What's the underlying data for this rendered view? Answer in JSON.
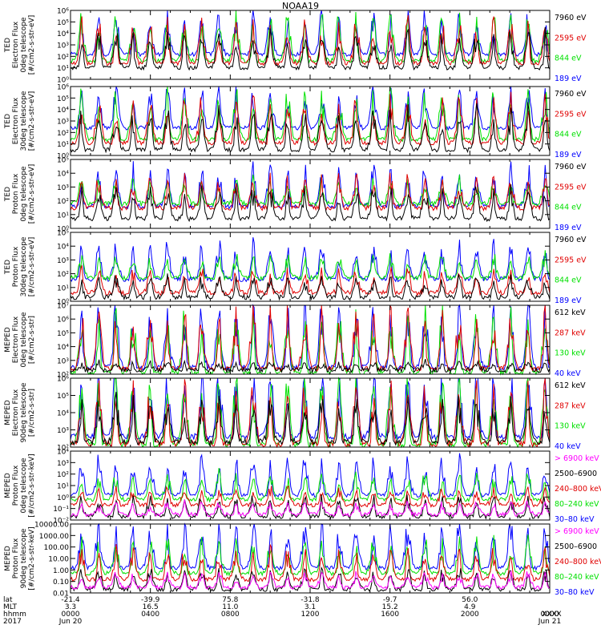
{
  "chart_data": {
    "type": "line",
    "title": "NOAA19",
    "grid": false,
    "legend_placement": "right",
    "x_axis": {
      "time_range_hours": [
        0,
        24
      ],
      "ticks": [
        {
          "lat": "-21.4",
          "mlt": "3.3",
          "hhmm": "0000",
          "date": "Jun 20"
        },
        {
          "lat": "-39.9",
          "mlt": "16.5",
          "hhmm": "0400",
          "date": ""
        },
        {
          "lat": "75.8",
          "mlt": "11.0",
          "hhmm": "0800",
          "date": ""
        },
        {
          "lat": "-31.8",
          "mlt": "3.1",
          "hhmm": "1200",
          "date": ""
        },
        {
          "lat": "-9.7",
          "mlt": "15.2",
          "hhmm": "1600",
          "date": ""
        },
        {
          "lat": "56.0",
          "mlt": "4.9",
          "hhmm": "2000",
          "date": ""
        },
        {
          "lat": "",
          "mlt": "",
          "hhmm": "0000",
          "date": "Jun 21"
        }
      ],
      "row_labels": [
        "lat",
        "MLT",
        "hhmm",
        "2017"
      ],
      "right_edge_label": "XXXX"
    },
    "panels": [
      {
        "ylabel": [
          "TED",
          "Electron Flux",
          "0deg telescope",
          "[#/cm2-s-str-eV]"
        ],
        "yscale": "log",
        "ylim": [
          1,
          1000000
        ],
        "tick_labels": [
          "10⁰",
          "10¹",
          "10²",
          "10³",
          "10⁴",
          "10⁵",
          "10⁶"
        ],
        "tick_format": "pow",
        "series": [
          {
            "name": "7960 eV",
            "color": "#000000",
            "base": 10,
            "spike": 3000
          },
          {
            "name": "2595 eV",
            "color": "#e00000",
            "base": 25,
            "spike": 20000
          },
          {
            "name": "844 eV",
            "color": "#00e000",
            "base": 40,
            "spike": 60000
          },
          {
            "name": "189 eV",
            "color": "#0000ff",
            "base": 150,
            "spike": 100000
          }
        ]
      },
      {
        "ylabel": [
          "TED",
          "Electron Flux",
          "30deg telescope",
          "[#/cm2-s-str-eV]"
        ],
        "yscale": "log",
        "ylim": [
          1,
          1000000
        ],
        "tick_labels": [
          "10⁰",
          "10¹",
          "10²",
          "10³",
          "10⁴",
          "10⁵",
          "10⁶"
        ],
        "tick_format": "pow",
        "series": [
          {
            "name": "7960 eV",
            "color": "#000000",
            "base": 3,
            "spike": 2000
          },
          {
            "name": "2595 eV",
            "color": "#e00000",
            "base": 12,
            "spike": 15000
          },
          {
            "name": "844 eV",
            "color": "#00e000",
            "base": 25,
            "spike": 50000
          },
          {
            "name": "189 eV",
            "color": "#0000ff",
            "base": 250,
            "spike": 120000
          }
        ]
      },
      {
        "ylabel": [
          "TED",
          "Proton Flux",
          "0deg telescope",
          "[#/cm2-s-str-eV]"
        ],
        "yscale": "log",
        "ylim": [
          1,
          100000
        ],
        "tick_labels": [
          "10⁰",
          "10¹",
          "10²",
          "10³",
          "10⁴",
          "10⁵"
        ],
        "tick_format": "pow",
        "series": [
          {
            "name": "7960 eV",
            "color": "#000000",
            "base": 5,
            "spike": 300
          },
          {
            "name": "2595 eV",
            "color": "#e00000",
            "base": 30,
            "spike": 2000
          },
          {
            "name": "844 eV",
            "color": "#00e000",
            "base": 60,
            "spike": 1500
          },
          {
            "name": "189 eV",
            "color": "#0000ff",
            "base": 40,
            "spike": 8000
          }
        ]
      },
      {
        "ylabel": [
          "TED",
          "Proton Flux",
          "30deg telescope",
          "[#/cm2-s-str-eV]"
        ],
        "yscale": "log",
        "ylim": [
          1,
          100000
        ],
        "tick_labels": [
          "10⁰",
          "10¹",
          "10²",
          "10³",
          "10⁴",
          "10⁵"
        ],
        "tick_format": "pow",
        "series": [
          {
            "name": "7960 eV",
            "color": "#000000",
            "base": 2,
            "spike": 30
          },
          {
            "name": "2595 eV",
            "color": "#e00000",
            "base": 4,
            "spike": 100
          },
          {
            "name": "844 eV",
            "color": "#00e000",
            "base": 50,
            "spike": 1000
          },
          {
            "name": "189 eV",
            "color": "#0000ff",
            "base": 40,
            "spike": 5000
          }
        ]
      },
      {
        "ylabel": [
          "MEPED",
          "Electron Flux",
          "0deg telescope",
          "[#/cm2-s-str]"
        ],
        "yscale": "log",
        "ylim": [
          100,
          10000000
        ],
        "tick_labels": [
          "10²",
          "10³",
          "10⁴",
          "10⁵",
          "10⁶",
          "10⁷"
        ],
        "tick_format": "pow",
        "series": [
          {
            "name": "612 keV",
            "color": "#000000",
            "base": 200,
            "spike": 600
          },
          {
            "name": "287 keV",
            "color": "#e00000",
            "base": 250,
            "spike": 500000
          },
          {
            "name": "130 keV",
            "color": "#00e000",
            "base": 120,
            "spike": 300000
          },
          {
            "name": "40 keV",
            "color": "#0000ff",
            "base": 300,
            "spike": 1000000
          }
        ]
      },
      {
        "ylabel": [
          "MEPED",
          "Electron Flux",
          "90deg telescope",
          "[#/cm2-s-str]"
        ],
        "yscale": "log",
        "ylim": [
          100,
          1000000
        ],
        "tick_labels": [
          "10²",
          "10³",
          "10⁴",
          "10⁵",
          "10⁶"
        ],
        "tick_format": "pow",
        "series": [
          {
            "name": "612 keV",
            "color": "#000000",
            "base": 200,
            "spike": 20000
          },
          {
            "name": "287 keV",
            "color": "#e00000",
            "base": 150,
            "spike": 80000
          },
          {
            "name": "130 keV",
            "color": "#00e000",
            "base": 130,
            "spike": 150000
          },
          {
            "name": "40 keV",
            "color": "#0000ff",
            "base": 400,
            "spike": 600000
          }
        ]
      },
      {
        "ylabel": [
          "MEPED",
          "Proton Flux",
          "0deg telescope",
          "[#/cm2-s-str-keV]"
        ],
        "yscale": "log",
        "ylim": [
          0.01,
          10000
        ],
        "tick_labels": [
          "10⁻²",
          "10⁻¹",
          "10⁰",
          "10¹",
          "10²",
          "10³",
          "10⁴"
        ],
        "tick_format": "pow",
        "series": [
          {
            "name": "> 6900 keV",
            "color": "#ff00ff",
            "base": 0.03,
            "spike": 0.2
          },
          {
            "name": "2500–6900",
            "color": "#000000",
            "base": 0.02,
            "spike": 0.5
          },
          {
            "name": "240–800 keV",
            "color": "#e00000",
            "base": 0.2,
            "spike": 3
          },
          {
            "name": "80–240 keV",
            "color": "#00e000",
            "base": 0.6,
            "spike": 40
          },
          {
            "name": "30–80 keV",
            "color": "#0000ff",
            "base": 1.5,
            "spike": 500
          }
        ]
      },
      {
        "ylabel": [
          "MEPED",
          "Proton Flux",
          "90deg telescope",
          "[#/cm2-s-str-keV]"
        ],
        "yscale": "log",
        "ylim": [
          0.01,
          10000
        ],
        "tick_labels": [
          "0.01",
          "0.10",
          "1.00",
          "10.00",
          "100.00",
          "1000.00",
          "10000.00"
        ],
        "tick_format": "decimal",
        "series": [
          {
            "name": "> 6900 keV",
            "color": "#ff00ff",
            "base": 0.03,
            "spike": 0.3
          },
          {
            "name": "2500–6900",
            "color": "#000000",
            "base": 0.02,
            "spike": 0.5
          },
          {
            "name": "240–800 keV",
            "color": "#e00000",
            "base": 0.15,
            "spike": 20
          },
          {
            "name": "80–240 keV",
            "color": "#00e000",
            "base": 0.5,
            "spike": 100
          },
          {
            "name": "30–80 keV",
            "color": "#0000ff",
            "base": 1.5,
            "spike": 2000
          }
        ]
      }
    ]
  }
}
